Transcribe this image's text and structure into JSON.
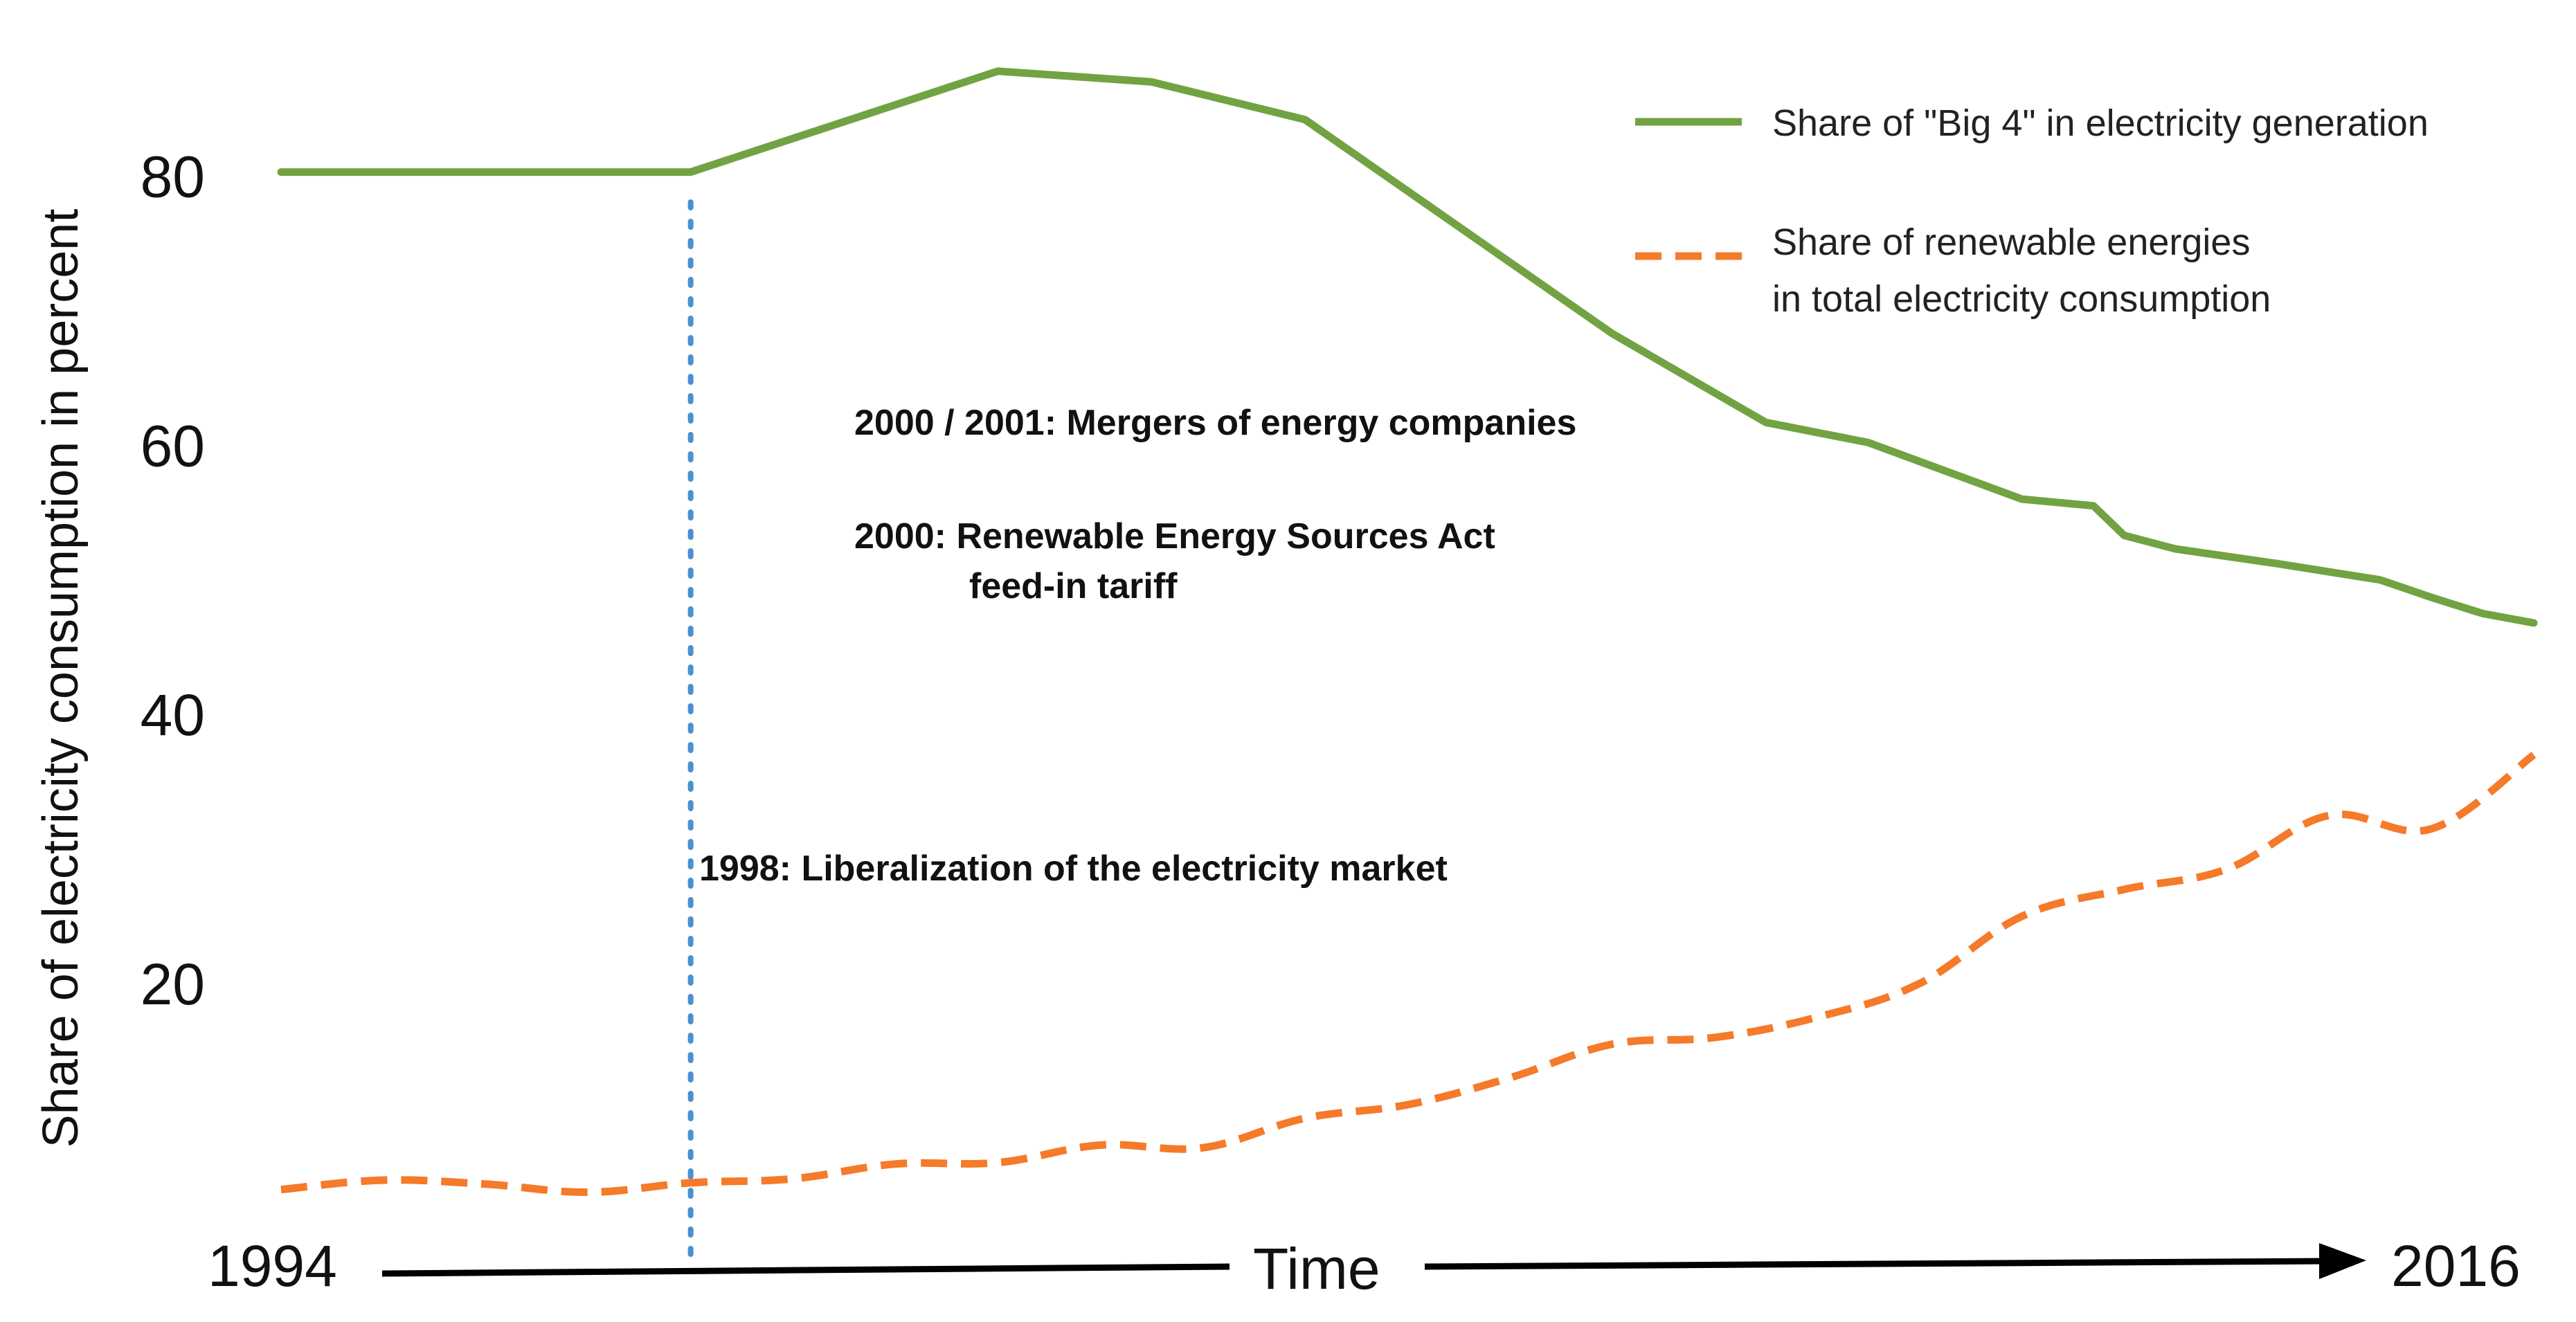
{
  "chart_data": {
    "type": "line",
    "title": "",
    "xlabel": "Time",
    "ylabel": "Share of electricity consumption in percent",
    "x_start_label": "1994",
    "x_end_label": "2016",
    "xlim": [
      1994,
      2016
    ],
    "ylim": [
      0,
      90
    ],
    "yticks": [
      "20",
      "40",
      "60",
      "80"
    ],
    "ytick_values": [
      20,
      40,
      60,
      80
    ],
    "grid": false,
    "legend_position": "top-right",
    "series": [
      {
        "name": "Big 4",
        "label_lines": [
          "Share of \"Big 4\" in electricity generation"
        ],
        "color": "#71a342",
        "style": "solid",
        "x": [
          1994,
          1998,
          2001,
          2002.5,
          2004,
          2007,
          2008.5,
          2009.5,
          2011,
          2011.7,
          2012,
          2012.5,
          2013.5,
          2014.5,
          2015,
          2015.5,
          2016
        ],
        "values": [
          80.3,
          80.3,
          87.8,
          87,
          84.2,
          68.3,
          61.7,
          60.2,
          56,
          55.5,
          53.3,
          52.3,
          51.2,
          50,
          48.7,
          47.5,
          46.8
        ]
      },
      {
        "name": "Renewables",
        "label_lines": [
          "Share of renewable energies",
          "in total electricity consumption"
        ],
        "color": "#f57a2a",
        "style": "dashed",
        "x": [
          1994,
          1995,
          1996,
          1997,
          1998,
          1999,
          2000,
          2001,
          2002,
          2003,
          2004,
          2005,
          2006,
          2007,
          2008,
          2009,
          2010,
          2011,
          2012,
          2013,
          2014,
          2015,
          2016
        ],
        "values": [
          4.7,
          5.4,
          5.1,
          4.5,
          5.2,
          5.5,
          6.6,
          6.7,
          8.0,
          7.8,
          10.0,
          11.0,
          13.0,
          15.5,
          16.0,
          17.5,
          20.0,
          25.0,
          27.0,
          28.5,
          32.5,
          31.5,
          37.0
        ]
      }
    ],
    "annotations": [
      {
        "lines": [
          "2000 / 2001: Mergers of energy companies"
        ]
      },
      {
        "lines": [
          "2000: Renewable Energy Sources Act",
          "feed-in tariff"
        ]
      },
      {
        "lines": [
          "1998: Liberalization of the electricity market"
        ]
      }
    ],
    "reference_line": {
      "x": 1998,
      "color": "#4a90d0",
      "style": "dotted"
    }
  }
}
